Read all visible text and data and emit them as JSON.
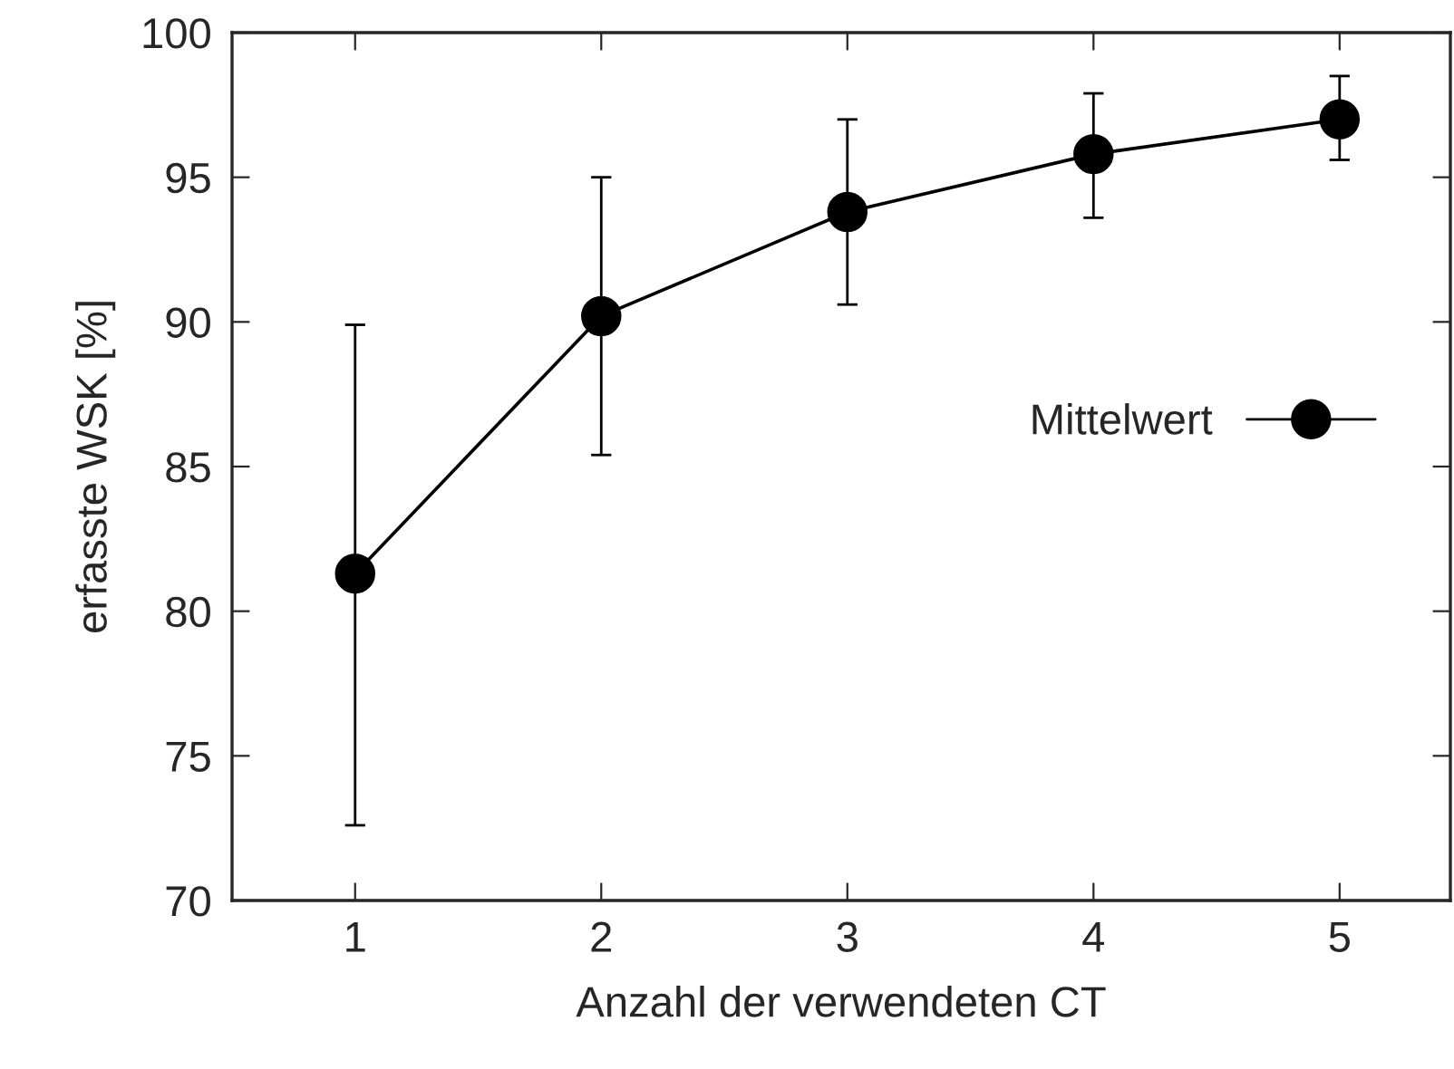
{
  "chart_data": {
    "type": "line",
    "xlabel": "Anzahl der verwendeten CT",
    "ylabel": "erfasste WSK [%]",
    "x": [
      1,
      2,
      3,
      4,
      5
    ],
    "series": [
      {
        "name": "Mittelwert",
        "color": "#000000",
        "values": [
          81.3,
          90.2,
          93.8,
          95.8,
          97.0
        ],
        "errors": [
          [
            72.6,
            89.9
          ],
          [
            85.4,
            95.0
          ],
          [
            90.6,
            97.0
          ],
          [
            93.6,
            97.9
          ],
          [
            95.6,
            98.5
          ]
        ]
      }
    ],
    "xlim": [
      0.5,
      5.45
    ],
    "xticks": [
      1,
      2,
      3,
      4,
      5
    ],
    "ylim": [
      70,
      100
    ],
    "yticks": [
      70,
      75,
      80,
      85,
      90,
      95,
      100
    ],
    "marker": "circle",
    "line_style": "solid",
    "legend": "right",
    "grid": false
  }
}
